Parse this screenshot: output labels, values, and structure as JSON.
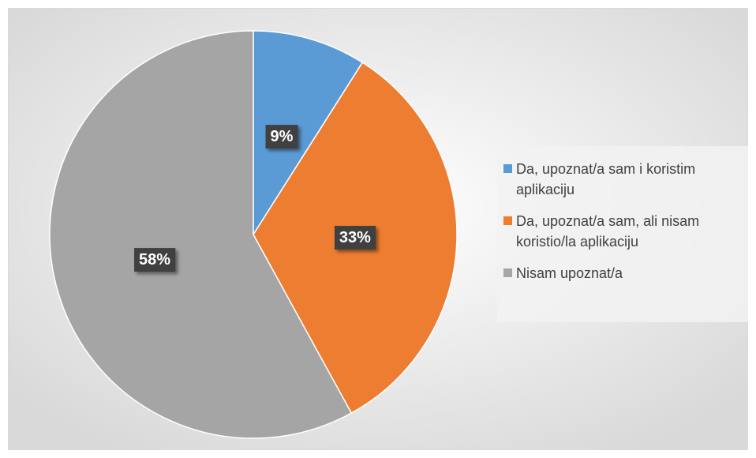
{
  "chart_data": {
    "type": "pie",
    "categories": [
      "Da, upoznat/a sam i koristim aplikaciju",
      "Da, upoznat/a sam, ali nisam koristio/la aplikaciju",
      "Nisam upoznat/a"
    ],
    "values": [
      9,
      33,
      58
    ],
    "value_labels": [
      "9%",
      "33%",
      "58%"
    ],
    "colors": [
      "#5b9bd5",
      "#ed7d31",
      "#a5a5a5"
    ],
    "legend": "right"
  }
}
